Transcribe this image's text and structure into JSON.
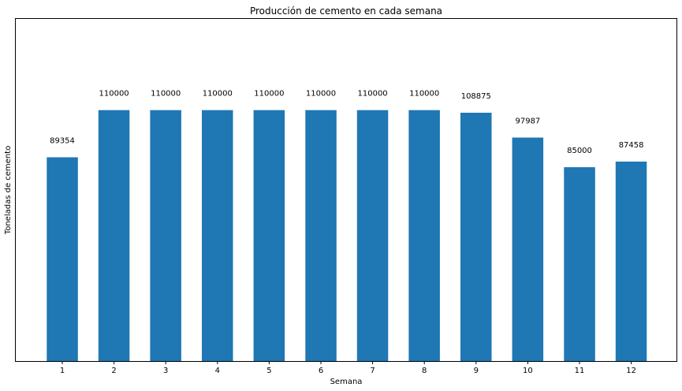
{
  "chart_data": {
    "type": "bar",
    "title": "Producción de cemento en cada semana",
    "xlabel": "Semana",
    "ylabel": "Toneladas de cemento",
    "categories": [
      "1",
      "2",
      "3",
      "4",
      "5",
      "6",
      "7",
      "8",
      "9",
      "10",
      "11",
      "12"
    ],
    "values": [
      89354,
      110000,
      110000,
      110000,
      110000,
      110000,
      110000,
      110000,
      108875,
      97987,
      85000,
      87458
    ],
    "data_labels": [
      "89354",
      "110000",
      "110000",
      "110000",
      "110000",
      "110000",
      "110000",
      "110000",
      "108875",
      "97987",
      "85000",
      "87458"
    ],
    "ylim": [
      0,
      150000
    ],
    "y_ticks_visible": false,
    "grid": false,
    "legend": "none",
    "bar_color": "#1f77b4"
  }
}
